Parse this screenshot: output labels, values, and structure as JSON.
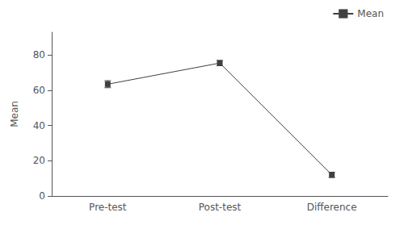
{
  "chart_data": {
    "type": "line",
    "categories": [
      "Pre-test",
      "Post-test",
      "Difference"
    ],
    "series": [
      {
        "name": "Mean",
        "values": [
          63.5,
          75.5,
          12.0
        ],
        "error_bars": [
          2.0,
          1.5,
          1.5
        ],
        "color": "#404040",
        "marker": "square"
      }
    ],
    "ylabel": "Mean",
    "ylim": [
      0,
      93
    ],
    "yticks": [
      0,
      20,
      40,
      60,
      80
    ],
    "grid": false,
    "legend": "upper right"
  }
}
